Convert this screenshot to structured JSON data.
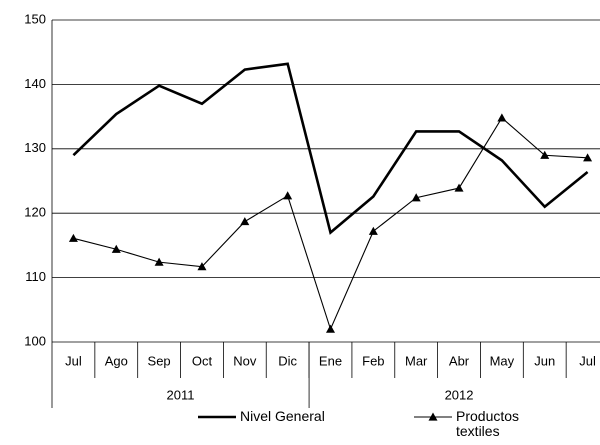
{
  "chart_data": {
    "type": "line",
    "categories": [
      "Jul",
      "Ago",
      "Sep",
      "Oct",
      "Nov",
      "Dic",
      "Ene",
      "Feb",
      "Mar",
      "Abr",
      "May",
      "Jun",
      "Jul"
    ],
    "groups": [
      {
        "name": "2011",
        "count": 6
      },
      {
        "name": "2012",
        "count": 7
      }
    ],
    "series": [
      {
        "name": "Nivel General",
        "color": "#000000",
        "marker": "none",
        "values": [
          129.0,
          135.4,
          139.8,
          137.0,
          142.3,
          143.2,
          117.0,
          122.6,
          132.7,
          132.7,
          128.2,
          121.0,
          126.4
        ]
      },
      {
        "name": "Productos textiles",
        "color": "#000000",
        "marker": "triangle",
        "values": [
          116.1,
          114.4,
          112.4,
          111.7,
          118.7,
          122.7,
          102.0,
          117.2,
          122.4,
          123.9,
          134.8,
          129.0,
          128.6
        ]
      }
    ],
    "ylim": [
      100,
      150
    ],
    "yticks": [
      100,
      110,
      120,
      130,
      140,
      150
    ],
    "grid": true,
    "legend": "bottom"
  }
}
